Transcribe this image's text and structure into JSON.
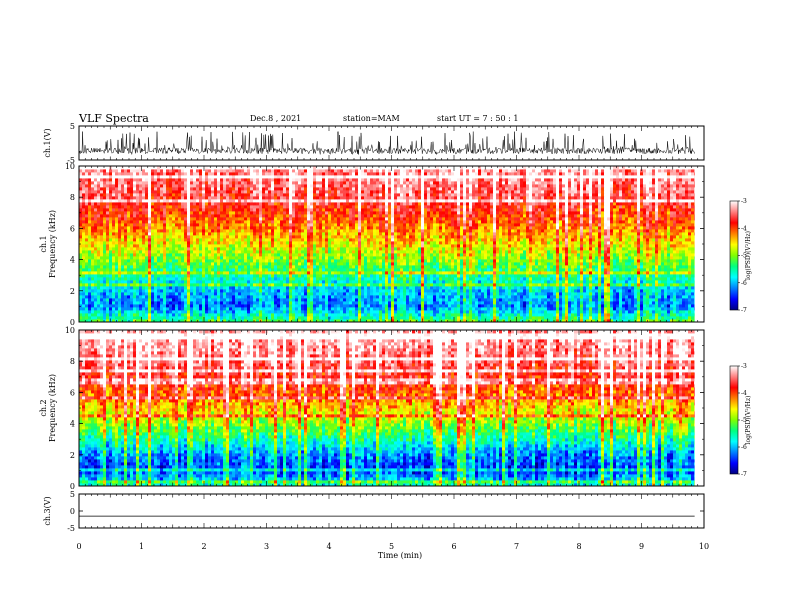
{
  "header": {
    "title": "VLF Spectra",
    "date": "Dec.8 , 2021",
    "station": "station=MAM",
    "start_ut": "start UT = 7 : 50 : 1"
  },
  "chart_data": [
    {
      "type": "line",
      "panel": "ch1-waveform",
      "ylabel": "ch.1(V)",
      "ylim": [
        -5,
        5
      ],
      "yticks": [
        "5",
        "-5"
      ],
      "x_range": [
        0,
        10
      ],
      "data_extent_min": 9.85,
      "description_of_data": "dense noisy waveform, bursts to about -3 V"
    },
    {
      "type": "heatmap",
      "panel": "ch1-spectrogram",
      "ylabel_line1": "ch.1",
      "ylabel_line2": "Frequency (kHz)",
      "ylim": [
        0,
        10
      ],
      "yticks": [
        "0",
        "2",
        "4",
        "6",
        "8",
        "10"
      ],
      "x_range": [
        0,
        10
      ],
      "data_extent_min": 9.85,
      "colorbar": {
        "label": "log(PSD)(V²/Hz)",
        "range": [
          -7,
          -3
        ],
        "ticks": [
          "-3",
          "-4",
          "-5",
          "-6",
          "-7"
        ]
      },
      "profile_kHz_vs_logPSD": [
        [
          0,
          -5.2
        ],
        [
          1,
          -6.2
        ],
        [
          2,
          -6.0
        ],
        [
          3,
          -5.5
        ],
        [
          4,
          -5.0
        ],
        [
          5,
          -4.6
        ],
        [
          6,
          -4.2
        ],
        [
          7,
          -3.9
        ],
        [
          8,
          -3.6
        ],
        [
          9,
          -3.4
        ],
        [
          10,
          -3.3
        ]
      ]
    },
    {
      "type": "heatmap",
      "panel": "ch2-spectrogram",
      "ylabel_line1": "ch.2",
      "ylabel_line2": "Frequency (kHz)",
      "ylim": [
        0,
        10
      ],
      "yticks": [
        "0",
        "2",
        "4",
        "6",
        "8",
        "10"
      ],
      "x_range": [
        0,
        10
      ],
      "data_extent_min": 9.85,
      "colorbar": {
        "label": "log(PSD)(V²/Hz)",
        "range": [
          -7,
          -3
        ],
        "ticks": [
          "-3",
          "-4",
          "-5",
          "-6",
          "-7"
        ]
      },
      "profile_kHz_vs_logPSD": [
        [
          0,
          -5.6
        ],
        [
          1,
          -6.5
        ],
        [
          2,
          -6.2
        ],
        [
          3,
          -5.6
        ],
        [
          4,
          -5.0
        ],
        [
          5,
          -4.5
        ],
        [
          6,
          -4.1
        ],
        [
          7,
          -3.8
        ],
        [
          8,
          -3.5
        ],
        [
          9,
          -3.3
        ],
        [
          10,
          -3.2
        ]
      ]
    },
    {
      "type": "line",
      "panel": "ch3-waveform",
      "ylabel": "ch.3(V)",
      "ylim": [
        -5,
        5
      ],
      "yticks": [
        "5",
        "0",
        "-5"
      ],
      "x_range": [
        0,
        10
      ],
      "data_extent_min": 9.85,
      "flat_value": -1.5
    }
  ],
  "xaxis": {
    "label": "Time (min)",
    "ticks": [
      "0",
      "1",
      "2",
      "3",
      "4",
      "5",
      "6",
      "7",
      "8",
      "9",
      "10"
    ]
  },
  "colors": {
    "colormap": [
      "#000080",
      "#0000ff",
      "#0080ff",
      "#00ffff",
      "#00ff80",
      "#80ff00",
      "#ffff00",
      "#ff8000",
      "#ff0000",
      "#ff8080",
      "#ffffff"
    ]
  }
}
